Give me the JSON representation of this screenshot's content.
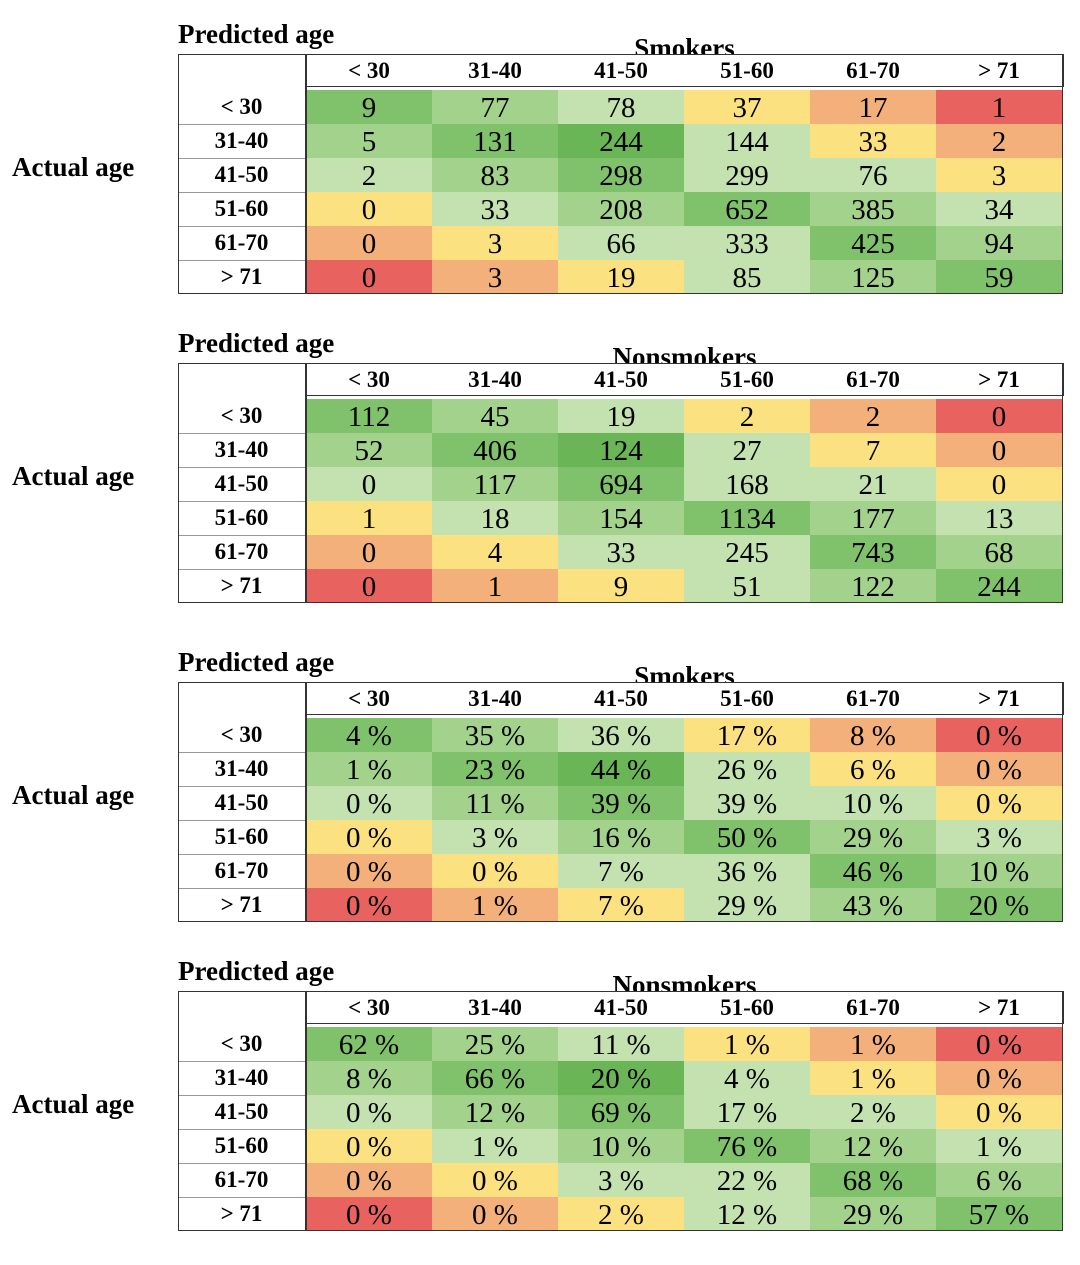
{
  "palette": {
    "red": "#e8635f",
    "orange": "#f4b07a",
    "yellow": "#fce181",
    "light_green": "#c3e2b0",
    "mid_green": "#a3d28c",
    "green": "#80c26b",
    "dark_green": "#6ab556"
  },
  "column_headers": [
    "< 30",
    "31-40",
    "41-50",
    "51-60",
    "61-70",
    "> 71"
  ],
  "row_headers": [
    "< 30",
    "31-40",
    "41-50",
    "51-60",
    "61-70",
    "> 71"
  ],
  "chart_data": [
    {
      "type": "heatmap",
      "title": "Smokers",
      "xlabel": "Predicted age",
      "ylabel": "Actual age",
      "x": [
        "< 30",
        "31-40",
        "41-50",
        "51-60",
        "61-70",
        "> 71"
      ],
      "y": [
        "< 30",
        "31-40",
        "41-50",
        "51-60",
        "61-70",
        "> 71"
      ],
      "values": [
        [
          "9",
          "77",
          "78",
          "37",
          "17",
          "1"
        ],
        [
          "5",
          "131",
          "244",
          "144",
          "33",
          "2"
        ],
        [
          "2",
          "83",
          "298",
          "299",
          "76",
          "3"
        ],
        [
          "0",
          "33",
          "208",
          "652",
          "385",
          "34"
        ],
        [
          "0",
          "3",
          "66",
          "333",
          "425",
          "94"
        ],
        [
          "0",
          "3",
          "19",
          "85",
          "125",
          "59"
        ]
      ]
    },
    {
      "type": "heatmap",
      "title": "Nonsmokers",
      "xlabel": "Predicted age",
      "ylabel": "Actual age",
      "x": [
        "< 30",
        "31-40",
        "41-50",
        "51-60",
        "61-70",
        "> 71"
      ],
      "y": [
        "< 30",
        "31-40",
        "41-50",
        "51-60",
        "61-70",
        "> 71"
      ],
      "values": [
        [
          "112",
          "45",
          "19",
          "2",
          "2",
          "0"
        ],
        [
          "52",
          "406",
          "124",
          "27",
          "7",
          "0"
        ],
        [
          "0",
          "117",
          "694",
          "168",
          "21",
          "0"
        ],
        [
          "1",
          "18",
          "154",
          "1134",
          "177",
          "13"
        ],
        [
          "0",
          "4",
          "33",
          "245",
          "743",
          "68"
        ],
        [
          "0",
          "1",
          "9",
          "51",
          "122",
          "244"
        ]
      ]
    },
    {
      "type": "heatmap",
      "title": "Smokers",
      "xlabel": "Predicted age",
      "ylabel": "Actual age",
      "x": [
        "< 30",
        "31-40",
        "41-50",
        "51-60",
        "61-70",
        "> 71"
      ],
      "y": [
        "< 30",
        "31-40",
        "41-50",
        "51-60",
        "61-70",
        "> 71"
      ],
      "values": [
        [
          "4 %",
          "35 %",
          "36 %",
          "17 %",
          "8 %",
          "0 %"
        ],
        [
          "1 %",
          "23 %",
          "44 %",
          "26 %",
          "6 %",
          "0 %"
        ],
        [
          "0 %",
          "11 %",
          "39 %",
          "39 %",
          "10 %",
          "0 %"
        ],
        [
          "0 %",
          "3 %",
          "16 %",
          "50 %",
          "29 %",
          "3 %"
        ],
        [
          "0 %",
          "0 %",
          "7 %",
          "36 %",
          "46 %",
          "10 %"
        ],
        [
          "0 %",
          "1 %",
          "7 %",
          "29 %",
          "43 %",
          "20 %"
        ]
      ]
    },
    {
      "type": "heatmap",
      "title": "Nonsmokers",
      "xlabel": "Predicted age",
      "ylabel": "Actual age",
      "x": [
        "< 30",
        "31-40",
        "41-50",
        "51-60",
        "61-70",
        "> 71"
      ],
      "y": [
        "< 30",
        "31-40",
        "41-50",
        "51-60",
        "61-70",
        "> 71"
      ],
      "values": [
        [
          "62 %",
          "25 %",
          "11 %",
          "1 %",
          "1 %",
          "0 %"
        ],
        [
          "8 %",
          "66 %",
          "20 %",
          "4 %",
          "1 %",
          "0 %"
        ],
        [
          "0 %",
          "12 %",
          "69 %",
          "17 %",
          "2 %",
          "0 %"
        ],
        [
          "0 %",
          "1 %",
          "10 %",
          "76 %",
          "12 %",
          "1 %"
        ],
        [
          "0 %",
          "0 %",
          "3 %",
          "22 %",
          "68 %",
          "6 %"
        ],
        [
          "0 %",
          "0 %",
          "2 %",
          "12 %",
          "29 %",
          "57 %"
        ]
      ]
    }
  ]
}
